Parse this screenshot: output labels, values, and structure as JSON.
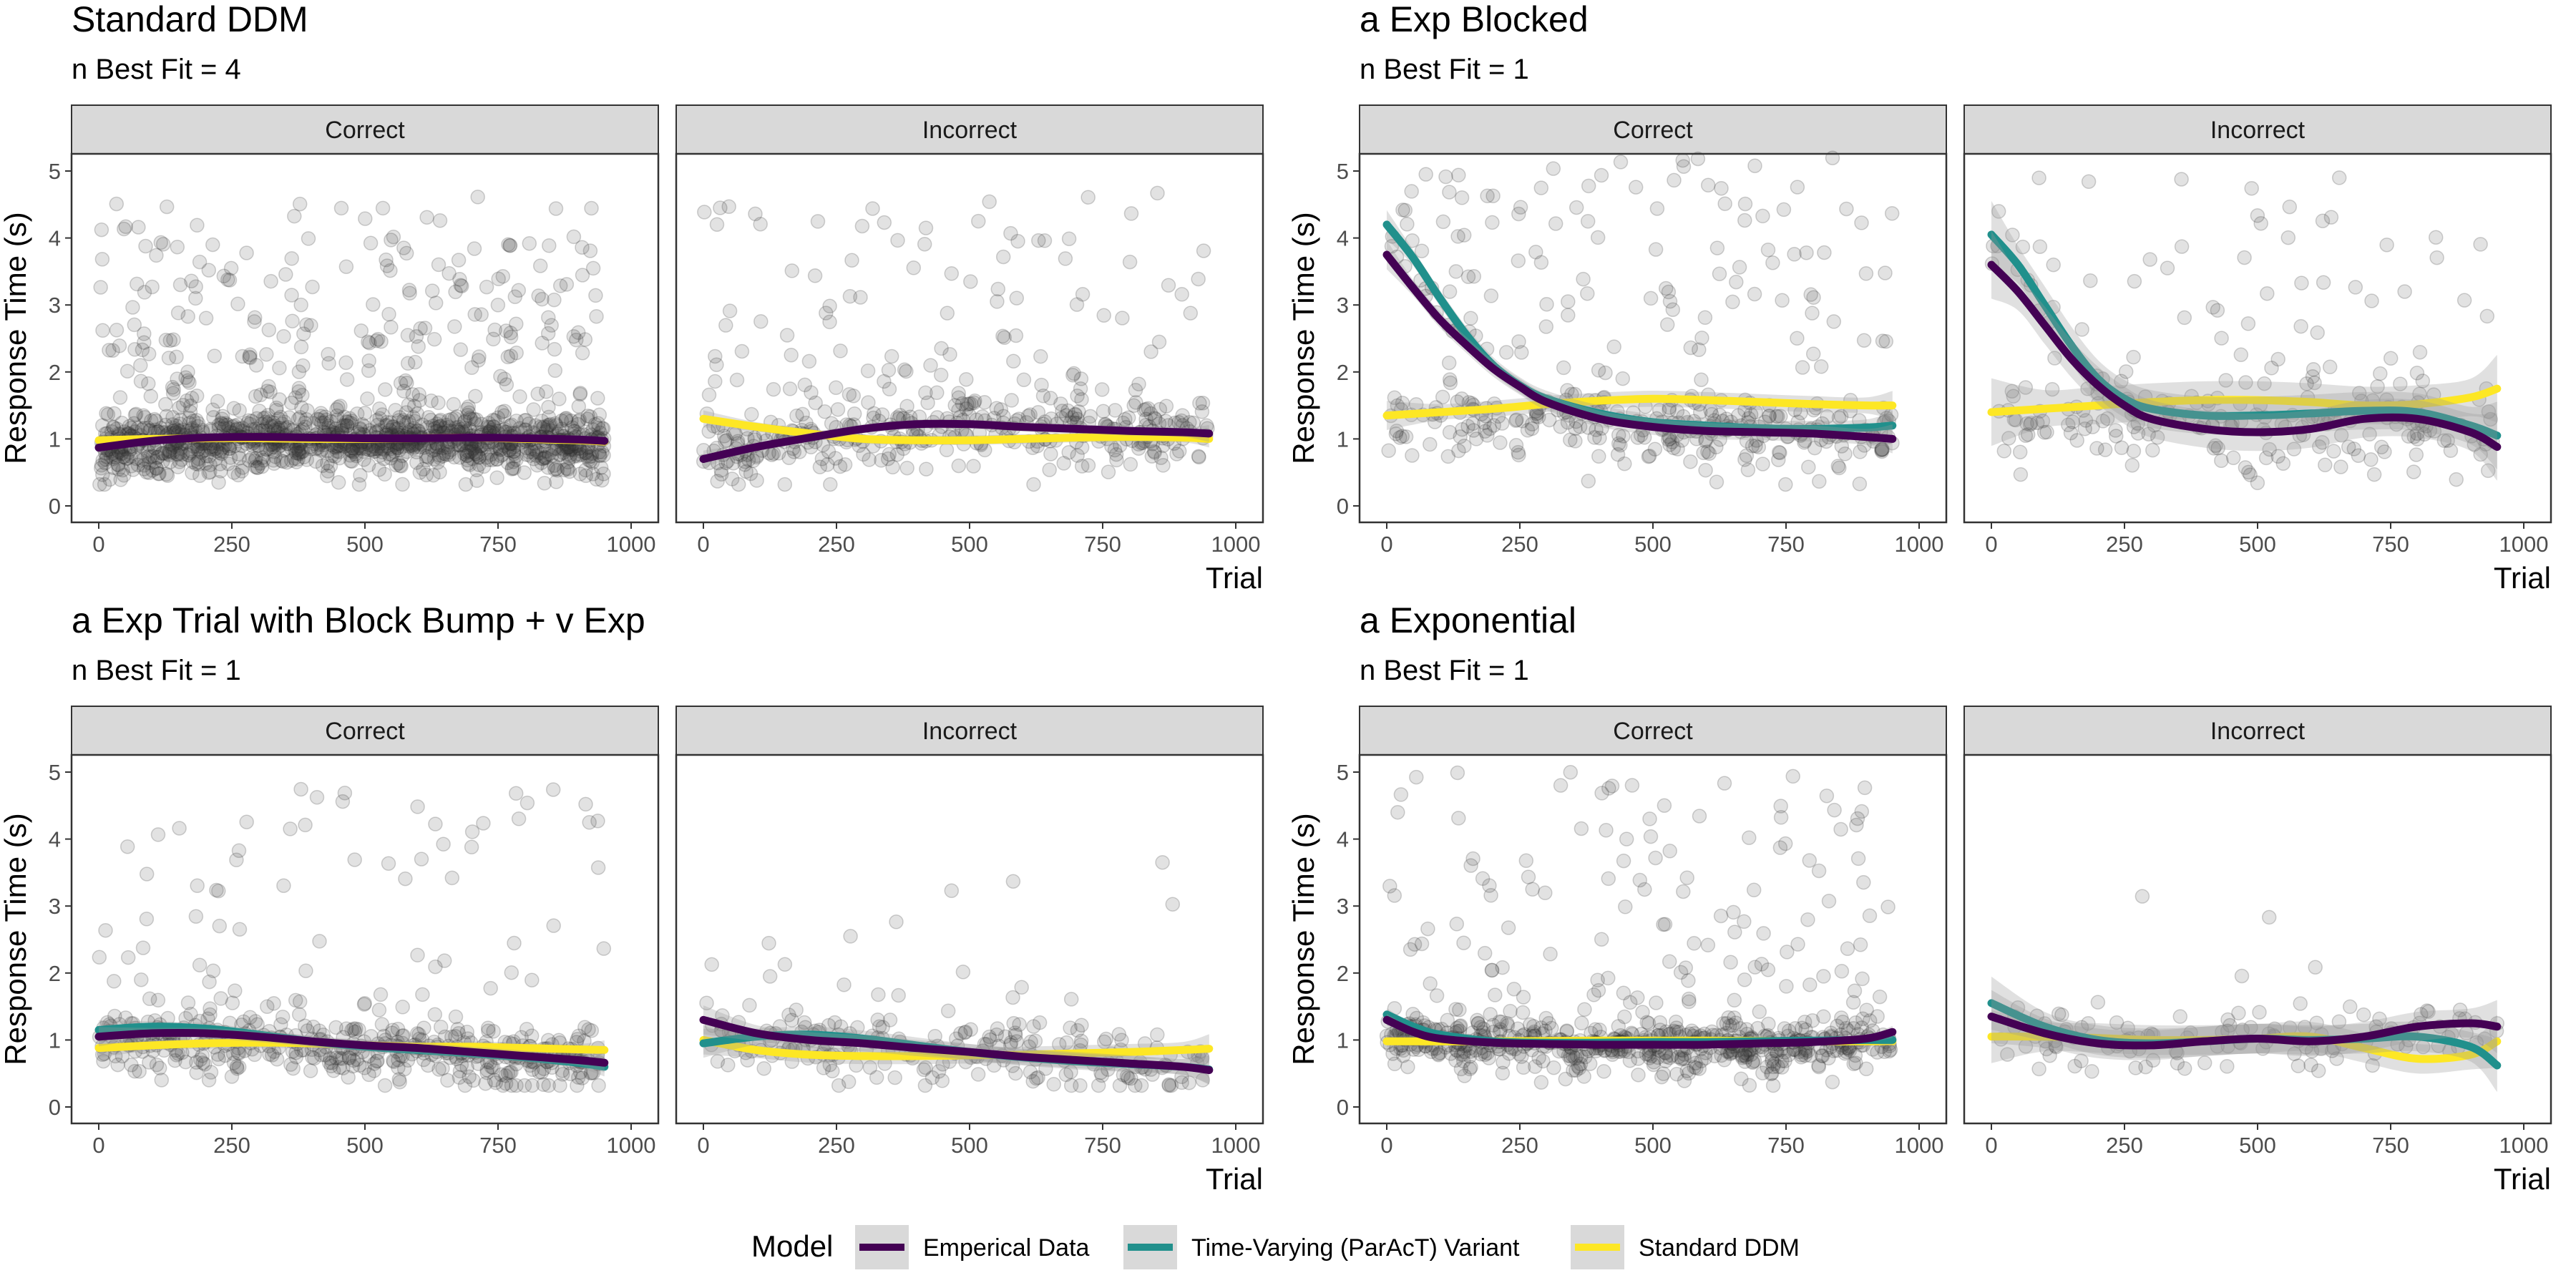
{
  "chart_data": {
    "type": "scatter",
    "colors": {
      "Emperical Data": "#440154",
      "Time-Varying (ParAcT) Variant": "#21908C",
      "Standard DDM": "#FDE725",
      "points": "#333333",
      "ribbon": "#999999",
      "strip": "#d9d9d9"
    },
    "legend": {
      "title": "Model",
      "position": "bottom",
      "entries": [
        "Emperical Data",
        "Time-Varying (ParAcT) Variant",
        "Standard DDM"
      ]
    },
    "xlabel": "Trial",
    "ylabel": "Response Time (s)",
    "xlim": [
      0,
      1000
    ],
    "ylim": [
      0,
      5
    ],
    "xticks": [
      0,
      250,
      500,
      750,
      1000
    ],
    "yticks": [
      0,
      1,
      2,
      3,
      4,
      5
    ],
    "panels": [
      {
        "title": "Standard DDM",
        "subtitle": "n Best Fit = 4",
        "facets": [
          {
            "label": "Correct",
            "density": 1400,
            "base": 0.9,
            "spread": 0.22,
            "outlier_frac": 0.22,
            "outlier_max": 4.7,
            "ribbon": 0.03,
            "series": [
              {
                "name": "Emperical Data",
                "x": [
                  0,
                  100,
                  200,
                  300,
                  400,
                  500,
                  600,
                  700,
                  800,
                  900,
                  950
                ],
                "y": [
                  0.87,
                  0.97,
                  1.02,
                  1.03,
                  1.02,
                  1.01,
                  1.01,
                  1.02,
                  1.01,
                  0.99,
                  0.97
                ]
              },
              {
                "name": "Standard DDM",
                "x": [
                  0,
                  100,
                  200,
                  300,
                  400,
                  500,
                  600,
                  700,
                  800,
                  900,
                  950
                ],
                "y": [
                  0.98,
                  1.0,
                  1.01,
                  1.01,
                  1.0,
                  1.0,
                  1.01,
                  1.02,
                  1.0,
                  0.98,
                  0.96
                ]
              }
            ]
          },
          {
            "label": "Incorrect",
            "density": 450,
            "base": 0.95,
            "spread": 0.28,
            "outlier_frac": 0.3,
            "outlier_max": 4.7,
            "ribbon": 0.07,
            "series": [
              {
                "name": "Emperical Data",
                "x": [
                  0,
                  100,
                  200,
                  300,
                  400,
                  500,
                  600,
                  700,
                  800,
                  900,
                  950
                ],
                "y": [
                  0.7,
                  0.88,
                  1.02,
                  1.15,
                  1.22,
                  1.22,
                  1.18,
                  1.15,
                  1.12,
                  1.1,
                  1.08
                ]
              },
              {
                "name": "Standard DDM",
                "x": [
                  0,
                  100,
                  200,
                  300,
                  400,
                  500,
                  600,
                  700,
                  800,
                  900,
                  950
                ],
                "y": [
                  1.3,
                  1.18,
                  1.08,
                  1.0,
                  0.98,
                  0.98,
                  1.0,
                  1.02,
                  1.03,
                  1.02,
                  1.0
                ]
              }
            ]
          }
        ]
      },
      {
        "title": "a Exp Blocked",
        "subtitle": "n Best Fit = 1",
        "facets": [
          {
            "label": "Correct",
            "density": 420,
            "base": 1.15,
            "spread": 0.28,
            "outlier_frac": 0.35,
            "outlier_max": 5.2,
            "ribbon": 0.12,
            "series": [
              {
                "name": "Emperical Data",
                "x": [
                  0,
                  50,
                  100,
                  150,
                  200,
                  250,
                  300,
                  400,
                  500,
                  600,
                  700,
                  800,
                  900,
                  950
                ],
                "y": [
                  3.75,
                  3.25,
                  2.78,
                  2.4,
                  2.05,
                  1.78,
                  1.55,
                  1.3,
                  1.18,
                  1.12,
                  1.1,
                  1.08,
                  1.03,
                  1.0
                ]
              },
              {
                "name": "Time-Varying (ParAcT) Variant",
                "x": [
                  0,
                  50,
                  100,
                  150,
                  200,
                  250,
                  300,
                  400,
                  500,
                  600,
                  700,
                  800,
                  900,
                  950
                ],
                "y": [
                  4.2,
                  3.7,
                  3.1,
                  2.55,
                  2.1,
                  1.8,
                  1.6,
                  1.38,
                  1.25,
                  1.2,
                  1.16,
                  1.15,
                  1.17,
                  1.2
                ]
              },
              {
                "name": "Standard DDM",
                "x": [
                  0,
                  100,
                  200,
                  300,
                  400,
                  500,
                  600,
                  700,
                  800,
                  900,
                  950
                ],
                "y": [
                  1.35,
                  1.4,
                  1.45,
                  1.52,
                  1.57,
                  1.6,
                  1.58,
                  1.55,
                  1.52,
                  1.5,
                  1.5
                ]
              }
            ]
          },
          {
            "label": "Incorrect",
            "density": 260,
            "base": 1.2,
            "spread": 0.32,
            "outlier_frac": 0.35,
            "outlier_max": 4.9,
            "ribbon": 0.28,
            "series": [
              {
                "name": "Emperical Data",
                "x": [
                  0,
                  50,
                  100,
                  150,
                  200,
                  250,
                  300,
                  400,
                  500,
                  600,
                  700,
                  800,
                  900,
                  950
                ],
                "y": [
                  3.6,
                  3.2,
                  2.7,
                  2.2,
                  1.8,
                  1.5,
                  1.3,
                  1.15,
                  1.1,
                  1.15,
                  1.3,
                  1.3,
                  1.1,
                  0.88
                ]
              },
              {
                "name": "Time-Varying (ParAcT) Variant",
                "x": [
                  0,
                  50,
                  100,
                  150,
                  200,
                  250,
                  300,
                  400,
                  500,
                  600,
                  700,
                  800,
                  900,
                  950
                ],
                "y": [
                  4.05,
                  3.6,
                  3.0,
                  2.4,
                  1.9,
                  1.6,
                  1.45,
                  1.35,
                  1.35,
                  1.38,
                  1.42,
                  1.4,
                  1.2,
                  1.05
                ]
              },
              {
                "name": "Standard DDM",
                "x": [
                  0,
                  100,
                  200,
                  300,
                  400,
                  500,
                  600,
                  700,
                  800,
                  900,
                  950
                ],
                "y": [
                  1.4,
                  1.45,
                  1.5,
                  1.55,
                  1.58,
                  1.58,
                  1.55,
                  1.5,
                  1.52,
                  1.62,
                  1.75
                ]
              }
            ]
          }
        ]
      },
      {
        "title": "a Exp Trial with Block Bump + v Exp",
        "subtitle": "n Best Fit = 1",
        "facets": [
          {
            "label": "Correct",
            "density": 520,
            "base": 0.9,
            "spread": 0.25,
            "outlier_frac": 0.2,
            "outlier_max": 4.8,
            "ribbon": 0.08,
            "series": [
              {
                "name": "Emperical Data",
                "x": [
                  0,
                  100,
                  200,
                  300,
                  400,
                  500,
                  600,
                  700,
                  800,
                  900,
                  950
                ],
                "y": [
                  1.05,
                  1.1,
                  1.1,
                  1.05,
                  0.98,
                  0.92,
                  0.88,
                  0.82,
                  0.76,
                  0.7,
                  0.66
                ]
              },
              {
                "name": "Time-Varying (ParAcT) Variant",
                "x": [
                  0,
                  100,
                  200,
                  300,
                  400,
                  500,
                  600,
                  700,
                  800,
                  900,
                  950
                ],
                "y": [
                  1.15,
                  1.2,
                  1.17,
                  1.08,
                  0.98,
                  0.9,
                  0.85,
                  0.8,
                  0.74,
                  0.66,
                  0.6
                ]
              },
              {
                "name": "Standard DDM",
                "x": [
                  0,
                  100,
                  200,
                  300,
                  400,
                  500,
                  600,
                  700,
                  800,
                  900,
                  950
                ],
                "y": [
                  0.88,
                  0.92,
                  0.95,
                  0.96,
                  0.95,
                  0.92,
                  0.9,
                  0.9,
                  0.88,
                  0.86,
                  0.85
                ]
              }
            ]
          },
          {
            "label": "Incorrect",
            "density": 240,
            "base": 0.85,
            "spread": 0.25,
            "outlier_frac": 0.08,
            "outlier_max": 4.5,
            "ribbon": 0.12,
            "series": [
              {
                "name": "Emperical Data",
                "x": [
                  0,
                  100,
                  200,
                  300,
                  400,
                  500,
                  600,
                  700,
                  800,
                  900,
                  950
                ],
                "y": [
                  1.3,
                  1.1,
                  1.0,
                  0.95,
                  0.88,
                  0.82,
                  0.75,
                  0.7,
                  0.65,
                  0.6,
                  0.55
                ]
              },
              {
                "name": "Time-Varying (ParAcT) Variant",
                "x": [
                  0,
                  100,
                  200,
                  300,
                  400,
                  500,
                  600,
                  700,
                  800,
                  900,
                  950
                ],
                "y": [
                  0.95,
                  1.05,
                  1.08,
                  1.02,
                  0.92,
                  0.82,
                  0.74,
                  0.68,
                  0.64,
                  0.6,
                  0.56
                ]
              },
              {
                "name": "Standard DDM",
                "x": [
                  0,
                  100,
                  200,
                  300,
                  400,
                  500,
                  600,
                  700,
                  800,
                  900,
                  950
                ],
                "y": [
                  1.0,
                  0.85,
                  0.78,
                  0.76,
                  0.76,
                  0.77,
                  0.78,
                  0.8,
                  0.82,
                  0.85,
                  0.87
                ]
              }
            ]
          }
        ]
      },
      {
        "title": "a Exponential",
        "subtitle": "n Best Fit = 1",
        "facets": [
          {
            "label": "Correct",
            "density": 700,
            "base": 0.78,
            "spread": 0.18,
            "outlier_frac": 0.25,
            "outlier_max": 5.0,
            "ribbon": 0.05,
            "series": [
              {
                "name": "Emperical Data",
                "x": [
                  0,
                  50,
                  100,
                  200,
                  300,
                  400,
                  500,
                  600,
                  700,
                  800,
                  900,
                  950
                ],
                "y": [
                  1.3,
                  1.12,
                  1.02,
                  0.96,
                  0.94,
                  0.93,
                  0.93,
                  0.93,
                  0.95,
                  0.97,
                  1.02,
                  1.12
                ]
              },
              {
                "name": "Time-Varying (ParAcT) Variant",
                "x": [
                  0,
                  50,
                  100,
                  200,
                  300,
                  400,
                  500,
                  600,
                  700,
                  800,
                  900,
                  950
                ],
                "y": [
                  1.38,
                  1.2,
                  1.08,
                  0.98,
                  0.96,
                  0.96,
                  0.97,
                  0.97,
                  0.98,
                  0.99,
                  1.0,
                  1.0
                ]
              },
              {
                "name": "Standard DDM",
                "x": [
                  0,
                  200,
                  400,
                  600,
                  800,
                  950
                ],
                "y": [
                  0.98,
                  0.98,
                  0.99,
                  0.99,
                  0.98,
                  0.98
                ]
              }
            ]
          },
          {
            "label": "Incorrect",
            "density": 130,
            "base": 0.95,
            "spread": 0.25,
            "outlier_frac": 0.05,
            "outlier_max": 3.8,
            "ribbon": 0.22,
            "series": [
              {
                "name": "Emperical Data",
                "x": [
                  0,
                  100,
                  200,
                  300,
                  400,
                  500,
                  600,
                  700,
                  800,
                  900,
                  950
                ],
                "y": [
                  1.35,
                  1.1,
                  0.95,
                  0.92,
                  0.98,
                  1.02,
                  0.98,
                  1.05,
                  1.2,
                  1.25,
                  1.2
                ]
              },
              {
                "name": "Time-Varying (ParAcT) Variant",
                "x": [
                  0,
                  100,
                  200,
                  300,
                  400,
                  500,
                  600,
                  700,
                  800,
                  900,
                  950
                ],
                "y": [
                  1.55,
                  1.2,
                  1.0,
                  0.95,
                  0.98,
                  1.02,
                  1.0,
                  1.02,
                  1.05,
                  0.9,
                  0.62
                ]
              },
              {
                "name": "Standard DDM",
                "x": [
                  0,
                  100,
                  200,
                  300,
                  400,
                  500,
                  600,
                  700,
                  800,
                  900,
                  950
                ],
                "y": [
                  1.05,
                  1.05,
                  1.03,
                  1.0,
                  1.0,
                  1.02,
                  1.05,
                  0.88,
                  0.72,
                  0.78,
                  0.98
                ]
              }
            ]
          }
        ]
      }
    ]
  }
}
